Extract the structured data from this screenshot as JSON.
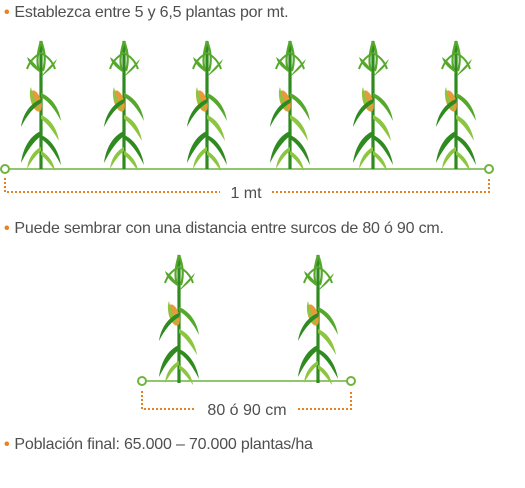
{
  "bullets": [
    "Establezca entre 5 y 6,5 plantas por mt.",
    "Puede sembrar con una distancia entre surcos de 80 ó 90 cm.",
    "Población final: 65.000 – 70.000 plantas/ha"
  ],
  "diagram1": {
    "plant_count": 6,
    "dimension_label": "1 mt"
  },
  "diagram2": {
    "plant_count": 2,
    "dimension_label": "80 ó 90 cm"
  },
  "colors": {
    "bullet": "#e8821e",
    "text": "#4f4f4f",
    "line": "#6fb43f",
    "plant_dark": "#2f8a1f",
    "plant_mid": "#56a82c",
    "plant_light": "#8cc540",
    "cob": "#e89a3a",
    "dimension": "#e8821e"
  }
}
